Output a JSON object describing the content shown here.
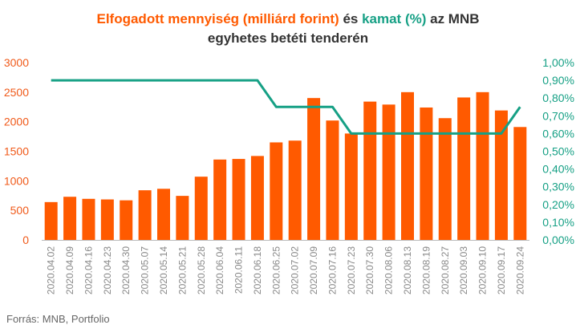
{
  "title": {
    "part1": "Elfogadott mennyiség (milliárd forint)",
    "part2": " és ",
    "part3": "kamat (%)",
    "part4": " az MNB",
    "line2": "egyhetes betéti tenderén"
  },
  "source": "Forrás: MNB, Portfolio",
  "colors": {
    "bar": "#ff5a00",
    "line": "#16a085",
    "left_axis": "#f05a1a",
    "right_axis": "#16a085"
  },
  "chart_data": {
    "type": "bar",
    "categories": [
      "2020.04.02",
      "2020.04.09",
      "2020.04.16",
      "2020.04.23",
      "2020.04.30",
      "2020.05.07",
      "2020.05.14",
      "2020.05.21",
      "2020.05.28",
      "2020.06.04",
      "2020.06.11",
      "2020.06.18",
      "2020.06.25",
      "2020.07.02",
      "2020.07.09",
      "2020.07.16",
      "2020.07.23",
      "2020.07.30",
      "2020.08.06",
      "2020.08.13",
      "2020.08.19",
      "2020.08.27",
      "2020.09.03",
      "2020.09.10",
      "2020.09.17",
      "2020.09.24"
    ],
    "series": [
      {
        "name": "Elfogadott mennyiség (milliárd forint)",
        "axis": "left",
        "kind": "bar",
        "values": [
          640,
          730,
          695,
          685,
          670,
          840,
          865,
          745,
          1070,
          1360,
          1370,
          1420,
          1650,
          1680,
          2400,
          2020,
          1800,
          2340,
          2290,
          2500,
          2240,
          2060,
          2410,
          2500,
          2190,
          1910
        ]
      },
      {
        "name": "kamat (%)",
        "axis": "right",
        "kind": "line",
        "values": [
          0.9,
          0.9,
          0.9,
          0.9,
          0.9,
          0.9,
          0.9,
          0.9,
          0.9,
          0.9,
          0.9,
          0.9,
          0.75,
          0.75,
          0.75,
          0.75,
          0.6,
          0.6,
          0.6,
          0.6,
          0.6,
          0.6,
          0.6,
          0.6,
          0.6,
          0.75
        ]
      }
    ],
    "y_left": {
      "min": 0,
      "max": 3000,
      "ticks": [
        "0",
        "500",
        "1000",
        "1500",
        "2000",
        "2500",
        "3000"
      ]
    },
    "y_right": {
      "min": 0,
      "max": 1.0,
      "ticks": [
        "0,00%",
        "0,10%",
        "0,20%",
        "0,30%",
        "0,40%",
        "0,50%",
        "0,60%",
        "0,70%",
        "0,80%",
        "0,90%",
        "1,00%"
      ]
    },
    "grid": false,
    "legend": "none"
  }
}
